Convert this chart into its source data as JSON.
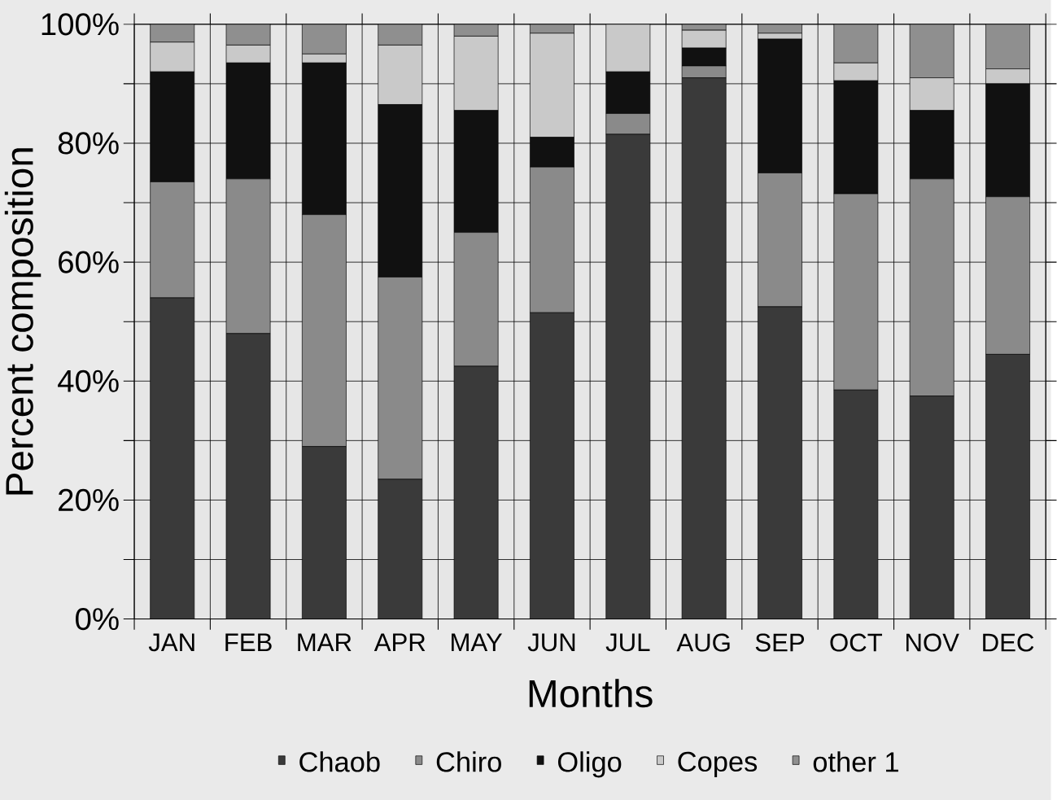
{
  "chart_data": {
    "type": "bar",
    "stacked": true,
    "xlabel": "Months",
    "ylabel": "Percent composition",
    "categories": [
      "JAN",
      "FEB",
      "MAR",
      "APR",
      "MAY",
      "JUN",
      "JUL",
      "AUG",
      "SEP",
      "OCT",
      "NOV",
      "DEC"
    ],
    "series": [
      {
        "name": "Chaob",
        "color": "#3a3a3a",
        "values": [
          54,
          48,
          29,
          23.5,
          42.5,
          51.5,
          81.5,
          91,
          52.5,
          38.5,
          37.5,
          44.5
        ]
      },
      {
        "name": "Chiro",
        "color": "#8a8a8a",
        "values": [
          19.5,
          26,
          39,
          34,
          22.5,
          24.5,
          3.5,
          2,
          22.5,
          33,
          36.5,
          26.5
        ]
      },
      {
        "name": "Oligo",
        "color": "#111111",
        "values": [
          18.5,
          19.5,
          25.5,
          29,
          20.5,
          5,
          7,
          3,
          22.5,
          19,
          11.5,
          19
        ]
      },
      {
        "name": "Copes",
        "color": "#c9c9c9",
        "values": [
          5,
          3,
          1.5,
          10,
          12.5,
          17.5,
          8,
          3,
          1,
          3,
          5.5,
          2.5
        ]
      },
      {
        "name": "other 1",
        "color": "#8f8f8f",
        "values": [
          3,
          3.5,
          5,
          3.5,
          2,
          1.5,
          0,
          1,
          1.5,
          6.5,
          9,
          7.5
        ]
      }
    ],
    "ylim": [
      0,
      100
    ],
    "yticks": [
      {
        "value": 0,
        "label": "0%"
      },
      {
        "value": 10,
        "label": null
      },
      {
        "value": 20,
        "label": "20%"
      },
      {
        "value": 30,
        "label": null
      },
      {
        "value": 40,
        "label": "40%"
      },
      {
        "value": 50,
        "label": null
      },
      {
        "value": 60,
        "label": "60%"
      },
      {
        "value": 70,
        "label": null
      },
      {
        "value": 80,
        "label": "80%"
      },
      {
        "value": 90,
        "label": null
      },
      {
        "value": 100,
        "label": "100%"
      }
    ],
    "grid": true,
    "legend": "bottom"
  }
}
